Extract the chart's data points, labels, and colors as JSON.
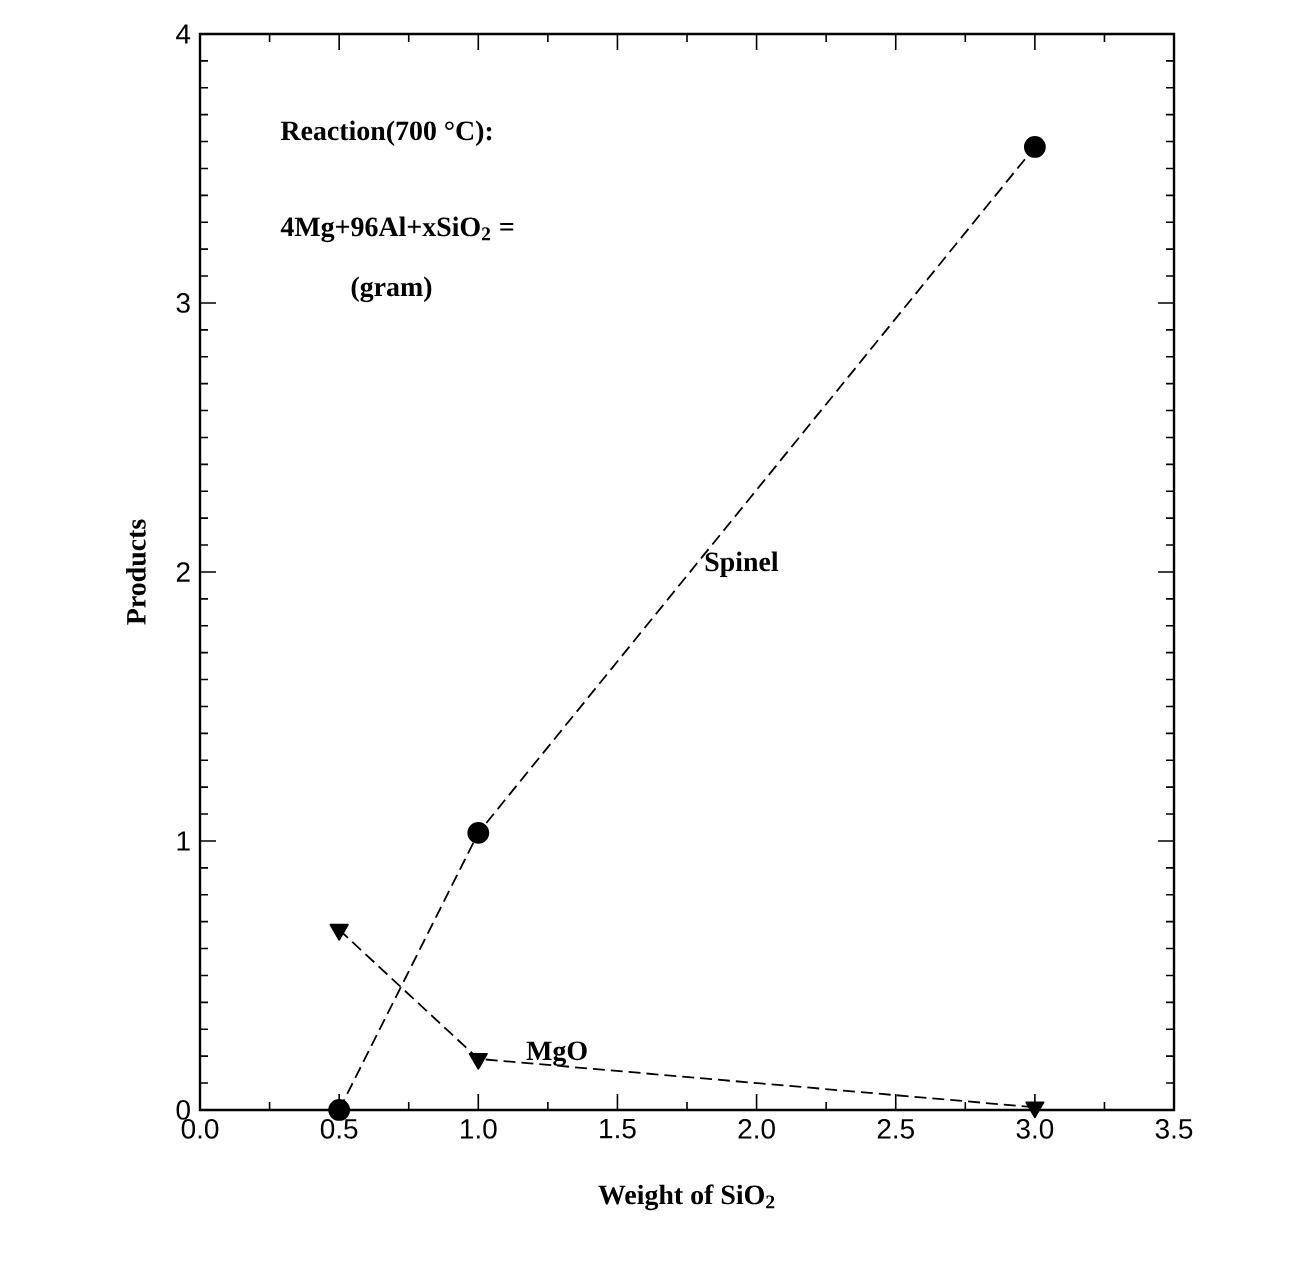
{
  "chart_data": {
    "type": "line",
    "xlabel": "Weight of SiO$_{2}$",
    "ylabel": "Products",
    "x": [
      0.5,
      1.0,
      3.0
    ],
    "series": [
      {
        "name": "Spinel",
        "color": "#000000",
        "values": [
          0,
          1.03,
          3.58
        ],
        "marker": "circle"
      },
      {
        "name": "MgO",
        "color": "#000000",
        "values": [
          0.67,
          0.19,
          0.01
        ],
        "marker": "triangle"
      }
    ],
    "xlim": [
      0,
      3.5
    ],
    "ylim": [
      0,
      4
    ],
    "xticks": [
      {
        "value": 0,
        "label": "0.0"
      },
      0.5,
      {
        "value": 1,
        "label": "1.0"
      },
      1.5,
      {
        "value": 2,
        "label": "2.0"
      },
      2.5,
      {
        "value": 3,
        "label": "3.0"
      },
      3.5
    ],
    "yticks": [
      0,
      1,
      2,
      3,
      4
    ],
    "annotations": [
      "Reaction(700 °C):",
      "4Mg+96Al+xSiO$_{2}$ =",
      "(gram)"
    ],
    "line_style": "dashed",
    "legend": false,
    "grid": false
  }
}
